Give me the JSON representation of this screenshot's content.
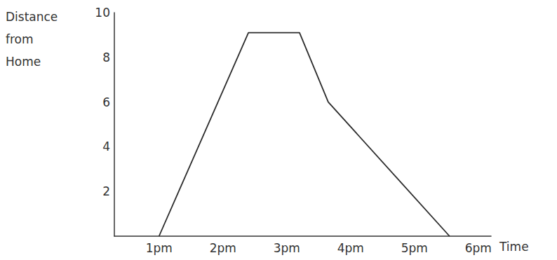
{
  "chart_data": {
    "type": "line",
    "x_label": "Time",
    "y_label": "Distance from Home",
    "x": [
      13,
      14.4,
      15.2,
      15.65,
      17.55
    ],
    "values": [
      0,
      9.1,
      9.1,
      6,
      0
    ],
    "color": "#2b2b2b",
    "xlim": [
      12.3,
      18.2
    ],
    "xticks": [
      {
        "value": 13,
        "label": "1pm"
      },
      {
        "value": 14,
        "label": "2pm"
      },
      {
        "value": 15,
        "label": "3pm"
      },
      {
        "value": 16,
        "label": "4pm"
      },
      {
        "value": 17,
        "label": "5pm"
      },
      {
        "value": 18,
        "label": "6pm"
      }
    ],
    "ylim": [
      0,
      10
    ],
    "yticks": [
      2,
      4,
      6,
      8,
      10
    ],
    "grid": false
  }
}
